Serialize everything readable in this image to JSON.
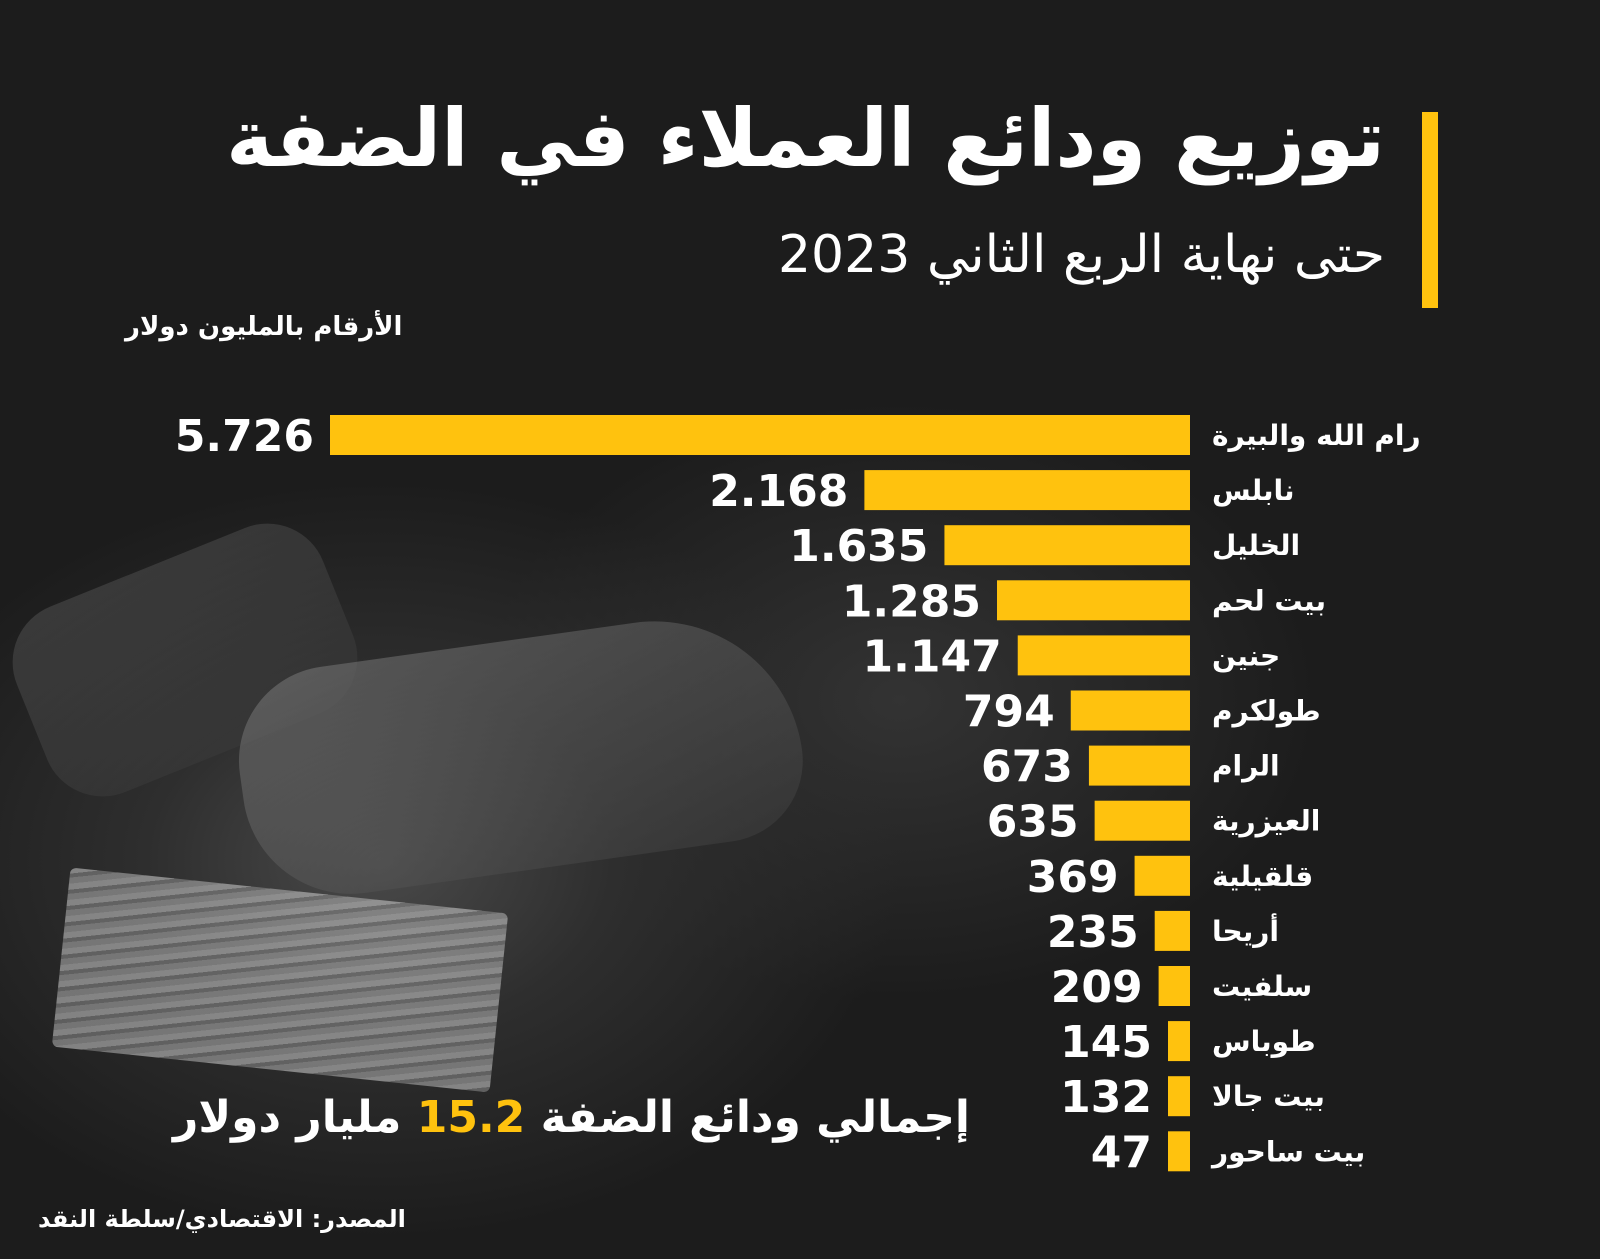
{
  "header": {
    "title": "توزيع ودائع العملاء في الضفة",
    "subtitle": "حتى نهاية الربع الثاني 2023",
    "units_note": "الأرقام بالمليون دولار"
  },
  "footer": {
    "total_prefix": "إجمالي ودائع الضفة",
    "total_value": "15.2",
    "total_suffix": "مليار دولار",
    "source": "المصدر: الاقتصادي/سلطة النقد"
  },
  "colors": {
    "accent": "#ffc20e",
    "background": "#1c1c1c",
    "text": "#ffffff"
  },
  "chart_data": {
    "type": "bar",
    "orientation": "horizontal",
    "categories": [
      "رام الله والبيرة",
      "نابلس",
      "الخليل",
      "بيت لحم",
      "جنين",
      "طولكرم",
      "الرام",
      "العيزرية",
      "قلقيلية",
      "أريحا",
      "سلفيت",
      "طوباس",
      "بيت جالا",
      "بيت ساحور"
    ],
    "value_labels": [
      "5.726",
      "2.168",
      "1.635",
      "1.285",
      "1.147",
      "794",
      "673",
      "635",
      "369",
      "235",
      "209",
      "145",
      "132",
      "47"
    ],
    "values": [
      5726,
      2168,
      1635,
      1285,
      1147,
      794,
      673,
      635,
      369,
      235,
      209,
      145,
      132,
      47
    ],
    "bar_color": "#ffc20e"
  }
}
